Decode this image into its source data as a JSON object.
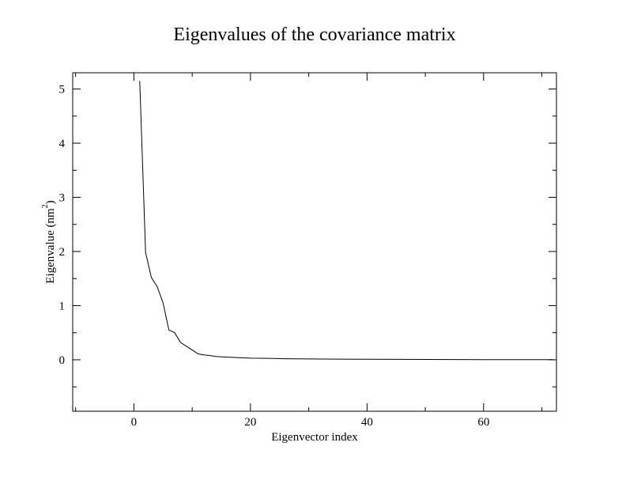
{
  "chart_data": {
    "type": "line",
    "title": "Eigenvalues of the covariance matrix",
    "xlabel": "Eigenvector index",
    "ylabel_main": "Eigenvalue (nm",
    "ylabel_sup": "2",
    "ylabel_close": ")",
    "xlim": [
      -10.5,
      72.5
    ],
    "ylim": [
      -0.95,
      5.3
    ],
    "x_ticks": [
      0,
      20,
      40,
      60
    ],
    "x_minor_ticks": [
      -10,
      10,
      30,
      50,
      70
    ],
    "y_ticks": [
      0,
      1,
      2,
      3,
      4,
      5
    ],
    "y_minor_ticks": [
      -0.5,
      0.5,
      1.5,
      2.5,
      3.5,
      4.5
    ],
    "grid": false,
    "series": [
      {
        "color": "#000000",
        "x": [
          1,
          2,
          3,
          4,
          5,
          6,
          7,
          8,
          9,
          10,
          11,
          12,
          13,
          14,
          15,
          16,
          17,
          18,
          19,
          20,
          22,
          24,
          26,
          28,
          30,
          35,
          40,
          45,
          50,
          55,
          60,
          65,
          70,
          72
        ],
        "y": [
          5.15,
          1.98,
          1.52,
          1.35,
          1.05,
          0.55,
          0.5,
          0.32,
          0.25,
          0.18,
          0.11,
          0.09,
          0.08,
          0.06,
          0.055,
          0.05,
          0.045,
          0.04,
          0.035,
          0.03,
          0.028,
          0.025,
          0.02,
          0.018,
          0.015,
          0.012,
          0.01,
          0.008,
          0.006,
          0.005,
          0.004,
          0.003,
          0.002,
          0.002
        ]
      }
    ]
  }
}
